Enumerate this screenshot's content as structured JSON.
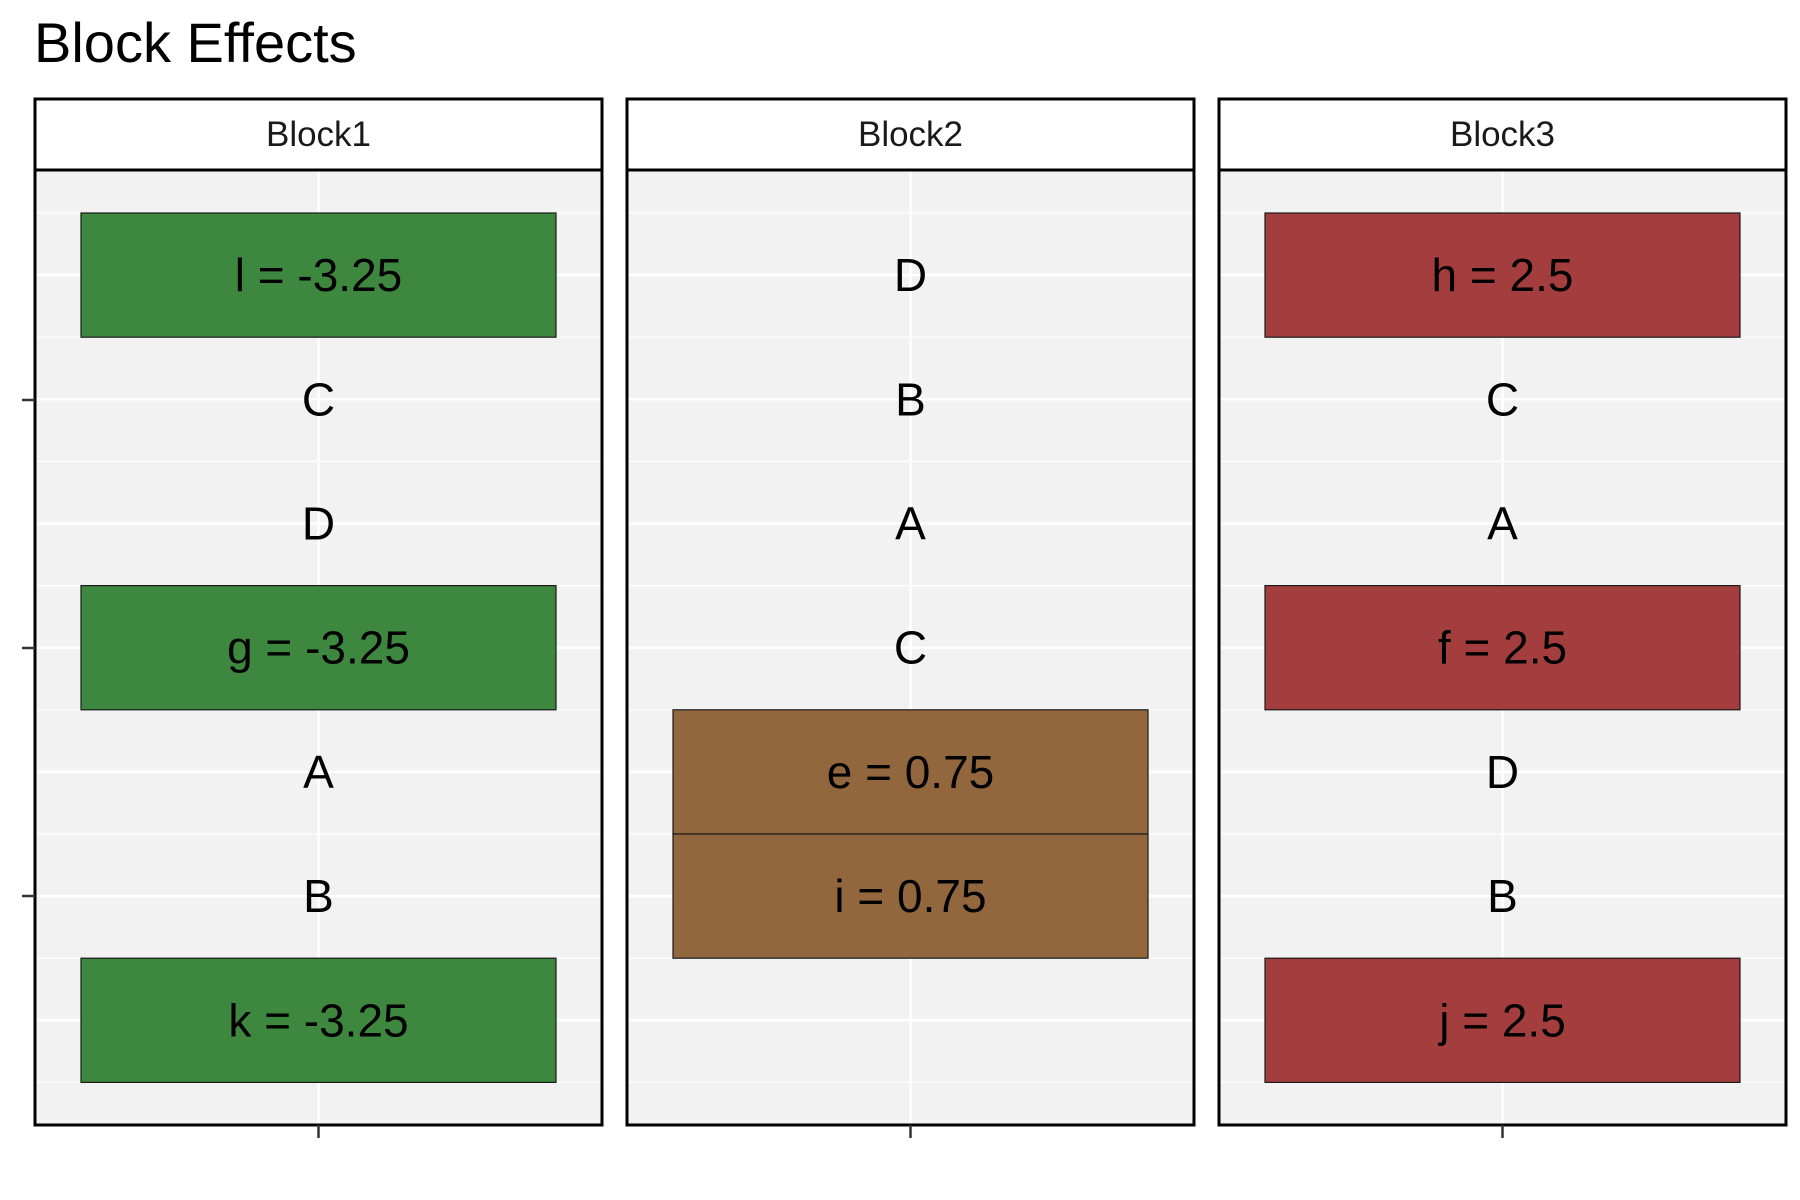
{
  "chart_data": {
    "type": "table",
    "title": "Block Effects",
    "panels": [
      {
        "label": "Block1",
        "cells": [
          {
            "row": 1,
            "label": "l = -3.25",
            "effect": -3.25,
            "highlighted": true
          },
          {
            "row": 2,
            "label": "C",
            "highlighted": false
          },
          {
            "row": 3,
            "label": "D",
            "highlighted": false
          },
          {
            "row": 4,
            "label": "g = -3.25",
            "effect": -3.25,
            "highlighted": true
          },
          {
            "row": 5,
            "label": "A",
            "highlighted": false
          },
          {
            "row": 6,
            "label": "B",
            "highlighted": false
          },
          {
            "row": 7,
            "label": "k = -3.25",
            "effect": -3.25,
            "highlighted": true
          }
        ]
      },
      {
        "label": "Block2",
        "cells": [
          {
            "row": 1,
            "label": "D",
            "highlighted": false
          },
          {
            "row": 2,
            "label": "B",
            "highlighted": false
          },
          {
            "row": 3,
            "label": "A",
            "highlighted": false
          },
          {
            "row": 4,
            "label": "C",
            "highlighted": false
          },
          {
            "row": 5,
            "label": "e = 0.75",
            "effect": 0.75,
            "highlighted": true
          },
          {
            "row": 6,
            "label": "i = 0.75",
            "effect": 0.75,
            "highlighted": true
          }
        ]
      },
      {
        "label": "Block3",
        "cells": [
          {
            "row": 1,
            "label": "h = 2.5",
            "effect": 2.5,
            "highlighted": true
          },
          {
            "row": 2,
            "label": "C",
            "highlighted": false
          },
          {
            "row": 3,
            "label": "A",
            "highlighted": false
          },
          {
            "row": 4,
            "label": "f = 2.5",
            "effect": 2.5,
            "highlighted": true
          },
          {
            "row": 5,
            "label": "D",
            "highlighted": false
          },
          {
            "row": 6,
            "label": "B",
            "highlighted": false
          },
          {
            "row": 7,
            "label": "j = 2.5",
            "effect": 2.5,
            "highlighted": true
          }
        ]
      }
    ],
    "rows": 7,
    "grid": true,
    "legend": "none"
  },
  "colors": {
    "panel_background": "#f2f2f2",
    "grid": "#ffffff",
    "border": "#000000",
    "strip_background": "#ffffff",
    "effect_negative": "#3e873e",
    "effect_neutral": "#92673e",
    "effect_positive": "#a43e3e"
  }
}
